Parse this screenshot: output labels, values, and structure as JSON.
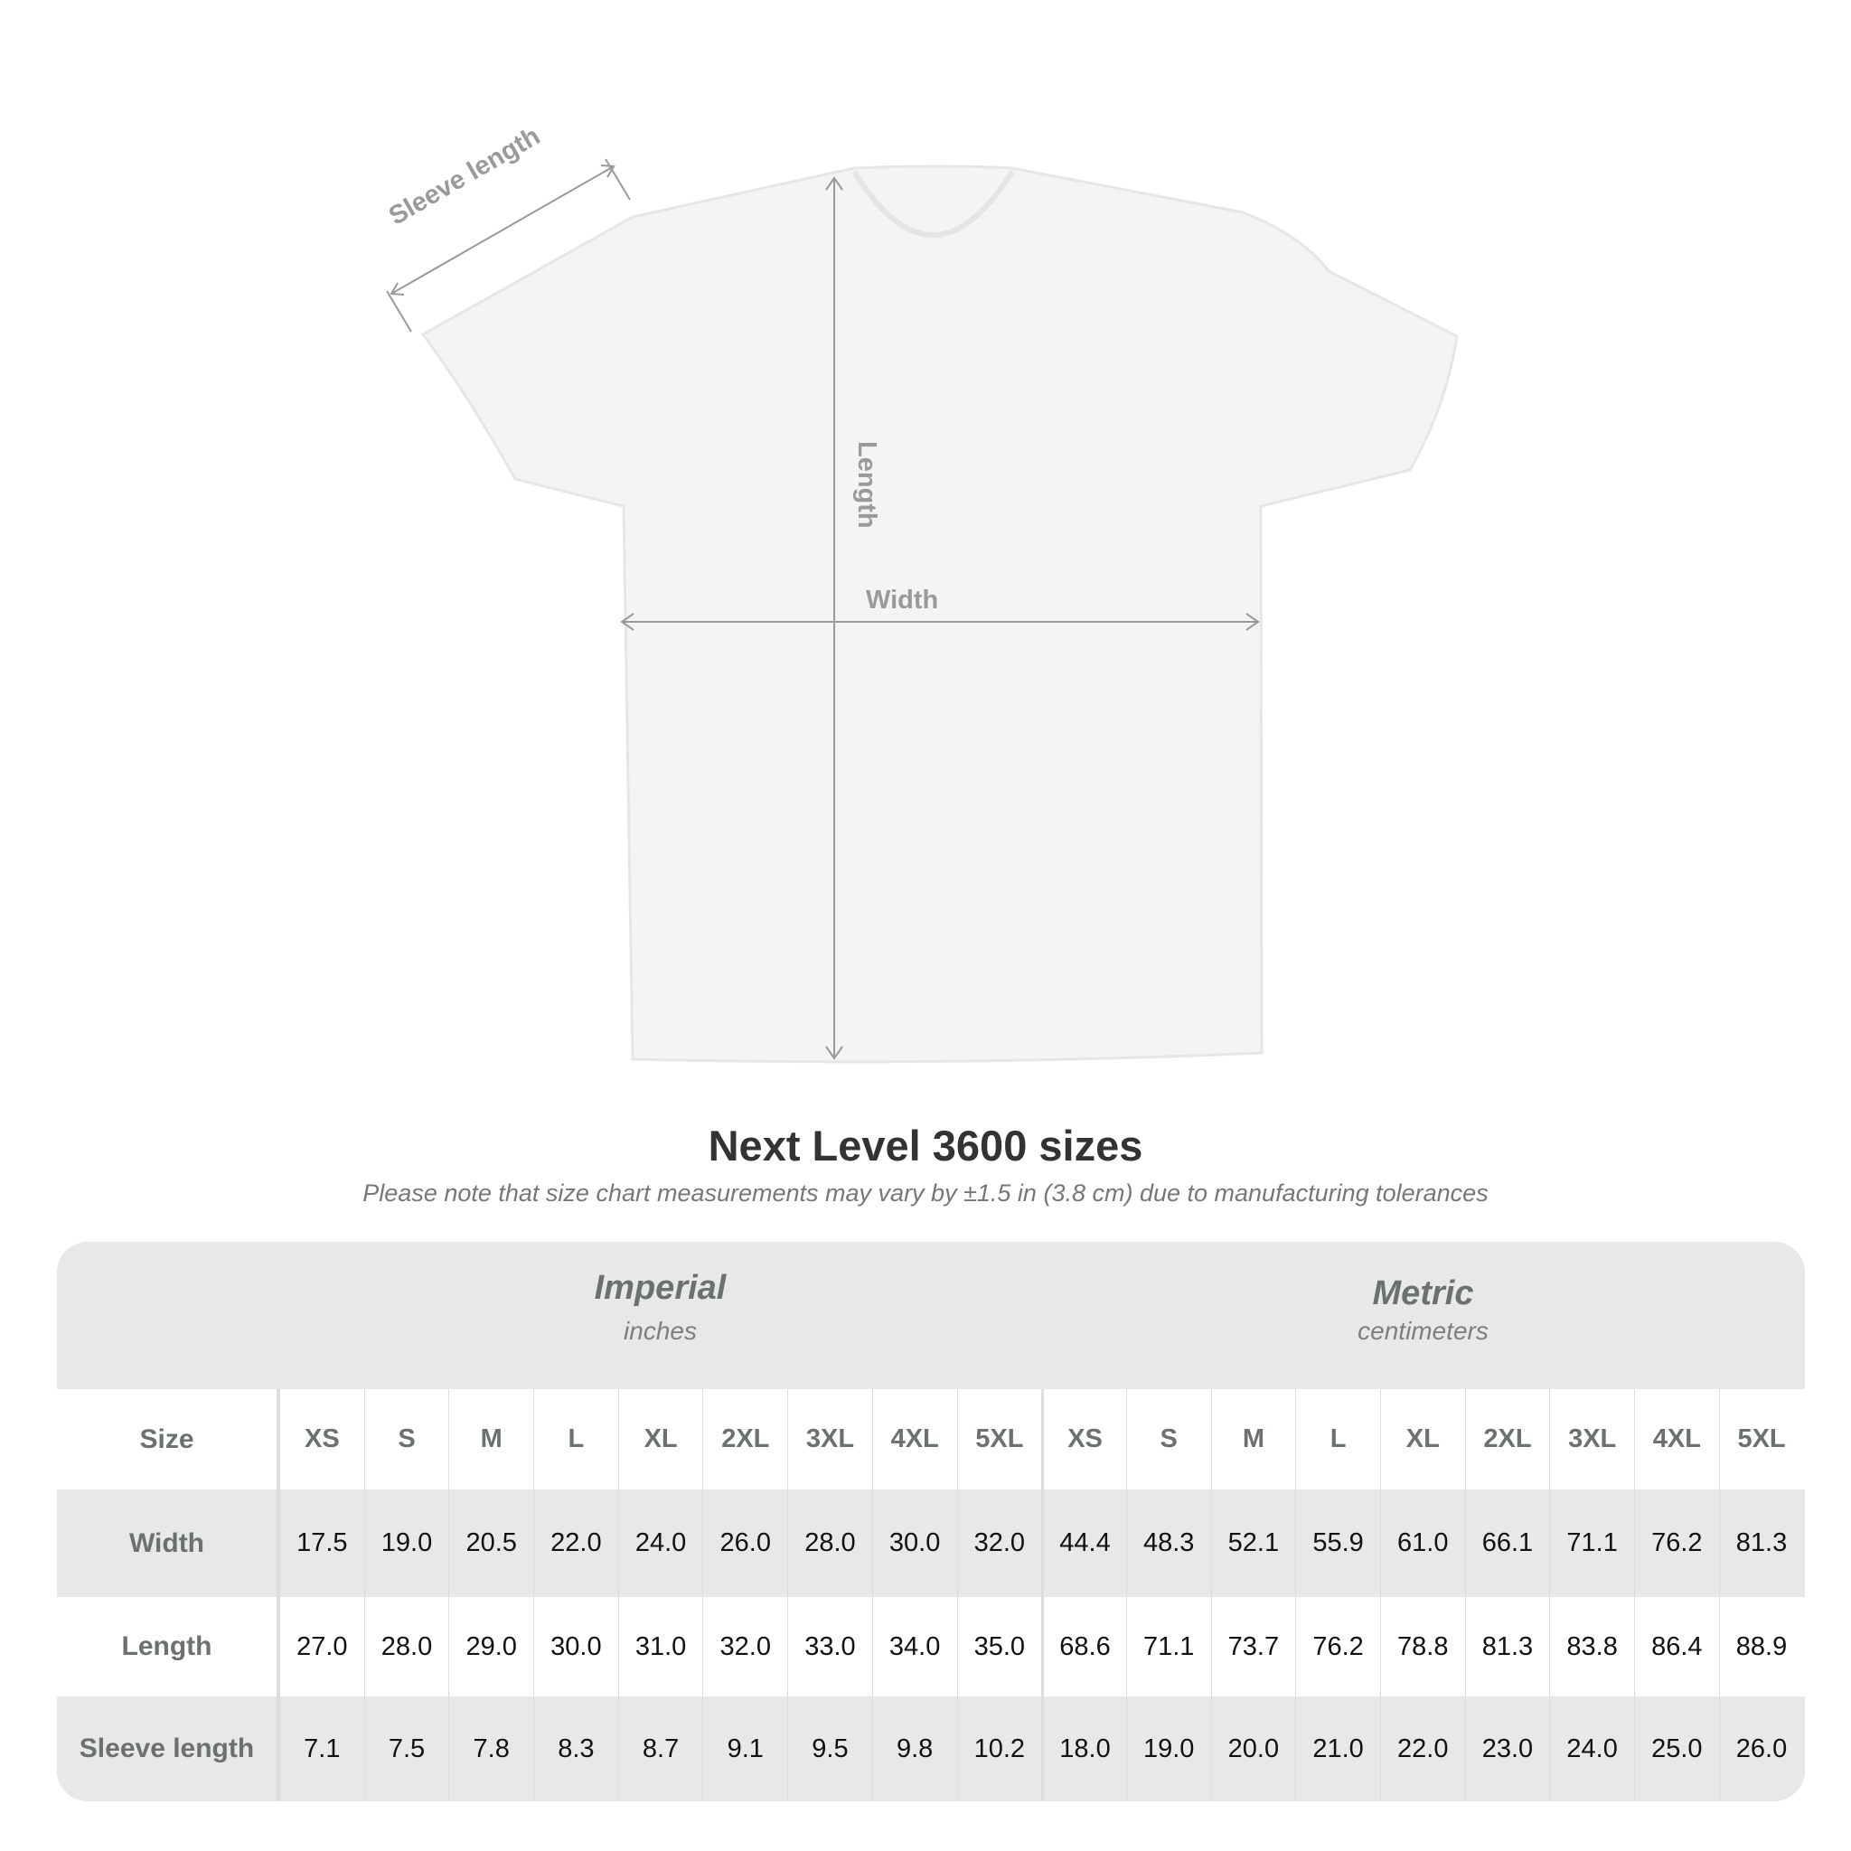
{
  "diagram": {
    "sleeve_label": "Sleeve length",
    "length_label": "Length",
    "width_label": "Width"
  },
  "title": "Next Level 3600 sizes",
  "subtitle": "Please note that size chart measurements may vary by ±1.5 in (3.8 cm) due to manufacturing tolerances",
  "imperial": {
    "heading": "Imperial",
    "unit": "inches"
  },
  "metric": {
    "heading": "Metric",
    "unit": "centimeters"
  },
  "sizes": [
    "XS",
    "S",
    "M",
    "L",
    "XL",
    "2XL",
    "3XL",
    "4XL",
    "5XL"
  ],
  "rows": [
    {
      "label": "Size"
    },
    {
      "label": "Width",
      "imperial": [
        "17.5",
        "19.0",
        "20.5",
        "22.0",
        "24.0",
        "26.0",
        "28.0",
        "30.0",
        "32.0"
      ],
      "metric": [
        "44.4",
        "48.3",
        "52.1",
        "55.9",
        "61.0",
        "66.1",
        "71.1",
        "76.2",
        "81.3"
      ]
    },
    {
      "label": "Length",
      "imperial": [
        "27.0",
        "28.0",
        "29.0",
        "30.0",
        "31.0",
        "32.0",
        "33.0",
        "34.0",
        "35.0"
      ],
      "metric": [
        "68.6",
        "71.1",
        "73.7",
        "76.2",
        "78.8",
        "81.3",
        "83.8",
        "86.4",
        "88.9"
      ]
    },
    {
      "label": "Sleeve length",
      "imperial": [
        "7.1",
        "7.5",
        "7.8",
        "8.3",
        "8.7",
        "9.1",
        "9.5",
        "9.8",
        "10.2"
      ],
      "metric": [
        "18.0",
        "19.0",
        "20.0",
        "21.0",
        "22.0",
        "23.0",
        "24.0",
        "25.0",
        "26.0"
      ]
    }
  ]
}
